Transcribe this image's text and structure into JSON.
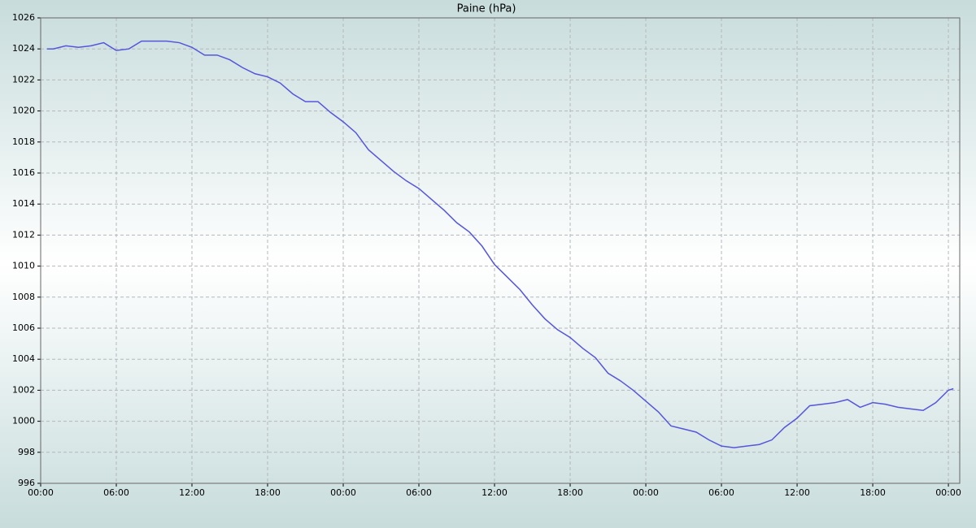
{
  "chart_data": {
    "type": "line",
    "title": "Paine (hPa)",
    "x": [
      0.5,
      1,
      2,
      3,
      4,
      5,
      6,
      7,
      8,
      9,
      10,
      11,
      12,
      13,
      14,
      15,
      16,
      17,
      18,
      19,
      20,
      21,
      22,
      23,
      24,
      25,
      26,
      27,
      28,
      29,
      30,
      31,
      32,
      33,
      34,
      35,
      36,
      37,
      38,
      39,
      40,
      41,
      42,
      43,
      44,
      45,
      46,
      47,
      48,
      49,
      50,
      51,
      52,
      53,
      54,
      55,
      56,
      57,
      58,
      59,
      60,
      61,
      62,
      63,
      64,
      65,
      66,
      67,
      68,
      69,
      70,
      71,
      72,
      72.4
    ],
    "series": [
      {
        "color": "#5555dd",
        "values": [
          1024.0,
          1024.0,
          1024.2,
          1024.1,
          1024.2,
          1024.4,
          1023.9,
          1024.0,
          1024.5,
          1024.5,
          1024.5,
          1024.4,
          1024.1,
          1023.6,
          1023.6,
          1023.3,
          1022.8,
          1022.4,
          1022.2,
          1021.8,
          1021.1,
          1020.6,
          1020.6,
          1019.9,
          1019.3,
          1018.6,
          1017.5,
          1016.8,
          1016.1,
          1015.5,
          1015.0,
          1014.3,
          1013.6,
          1012.8,
          1012.2,
          1011.3,
          1010.1,
          1009.3,
          1008.5,
          1007.5,
          1006.6,
          1005.9,
          1005.4,
          1004.7,
          1004.1,
          1003.1,
          1002.6,
          1002.0,
          1001.3,
          1000.6,
          999.7,
          999.5,
          999.3,
          998.8,
          998.4,
          998.3,
          998.4,
          998.5,
          998.8,
          999.6,
          1000.2,
          1001.0,
          1001.1,
          1001.2,
          1001.4,
          1000.9,
          1001.2,
          1001.1,
          1000.9,
          1000.8,
          1000.7,
          1001.2,
          1002.0,
          1002.1
        ]
      }
    ],
    "xlim": [
      0,
      72.9
    ],
    "xticks": [
      {
        "value": 0,
        "label": "00:00"
      },
      {
        "value": 6,
        "label": "06:00"
      },
      {
        "value": 12,
        "label": "12:00"
      },
      {
        "value": 18,
        "label": "18:00"
      },
      {
        "value": 24,
        "label": "00:00"
      },
      {
        "value": 30,
        "label": "06:00"
      },
      {
        "value": 36,
        "label": "12:00"
      },
      {
        "value": 42,
        "label": "18:00"
      },
      {
        "value": 48,
        "label": "00:00"
      },
      {
        "value": 54,
        "label": "06:00"
      },
      {
        "value": 60,
        "label": "12:00"
      },
      {
        "value": 66,
        "label": "18:00"
      },
      {
        "value": 72,
        "label": "00:00"
      }
    ],
    "ylim": [
      996,
      1026
    ],
    "yticks": [
      996,
      998,
      1000,
      1002,
      1004,
      1006,
      1008,
      1010,
      1012,
      1014,
      1016,
      1018,
      1020,
      1022,
      1024,
      1026
    ],
    "grid": true
  }
}
